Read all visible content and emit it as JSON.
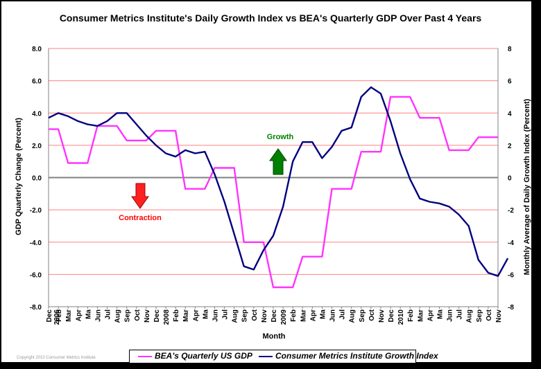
{
  "chart_data": {
    "type": "line",
    "title": "Consumer Metrics Institute's Daily Growth Index vs BEA's Quarterly GDP Over Past 4 Years",
    "xlabel": "Month",
    "ylabel": "GDP Quarterly Change (Percent)",
    "ylabel_right": "Monthly Average of Daily Growth Index (Percent)",
    "ylim": [
      -8,
      8
    ],
    "y_ticks_left": [
      "8.0",
      "6.0",
      "4.0",
      "2.0",
      "0.0",
      "-2.0",
      "-4.0",
      "-6.0",
      "-8.0"
    ],
    "y_ticks_right": [
      "8",
      "6",
      "4",
      "2",
      "0",
      "-2",
      "-4",
      "-6",
      "-8"
    ],
    "grid": true,
    "legend_position": "bottom",
    "x_labels": [
      [
        "Dec",
        "2006"
      ],
      [
        "Feb"
      ],
      [
        "Mar"
      ],
      [
        "Apr"
      ],
      [
        "Ma"
      ],
      [
        "Jun"
      ],
      [
        "Jul"
      ],
      [
        "Aug"
      ],
      [
        "Sep"
      ],
      [
        "Oct"
      ],
      [
        "Nov"
      ],
      [
        "Dec"
      ],
      [
        "2008"
      ],
      [
        "Feb"
      ],
      [
        "Mar"
      ],
      [
        "Apr"
      ],
      [
        "Ma"
      ],
      [
        "Jun"
      ],
      [
        "Jul"
      ],
      [
        "Aug"
      ],
      [
        "Sep"
      ],
      [
        "Oct"
      ],
      [
        "Nov"
      ],
      [
        "Dec"
      ],
      [
        "2009"
      ],
      [
        "Feb"
      ],
      [
        "Mar"
      ],
      [
        "Apr"
      ],
      [
        "Ma"
      ],
      [
        "Jun"
      ],
      [
        "Jul"
      ],
      [
        "Aug"
      ],
      [
        "Sep"
      ],
      [
        "Oct"
      ],
      [
        "Nov"
      ],
      [
        "Dec"
      ],
      [
        "2010"
      ],
      [
        "Feb"
      ],
      [
        "Mar"
      ],
      [
        "Apr"
      ],
      [
        "Ma"
      ],
      [
        "Jun"
      ],
      [
        "Jul"
      ],
      [
        "Aug"
      ],
      [
        "Sep"
      ],
      [
        "Oct"
      ],
      [
        "Nov"
      ]
    ],
    "series": [
      {
        "name": "BEA's Quarterly US GDP",
        "color": "#ff33ff",
        "axis": "left",
        "values": [
          3.0,
          3.0,
          0.9,
          0.9,
          0.9,
          3.2,
          3.2,
          3.2,
          2.3,
          2.3,
          2.3,
          2.9,
          2.9,
          2.9,
          -0.7,
          -0.7,
          -0.7,
          0.6,
          0.6,
          0.6,
          -4.0,
          -4.0,
          -4.0,
          -6.8,
          -6.8,
          -6.8,
          -4.9,
          -4.9,
          -4.9,
          -0.7,
          -0.7,
          -0.7,
          1.6,
          1.6,
          1.6,
          5.0,
          5.0,
          5.0,
          3.7,
          3.7,
          3.7,
          1.7,
          1.7,
          1.7,
          2.5,
          2.5,
          2.5
        ]
      },
      {
        "name": "Consumer Metrics Institute Growth Index",
        "color": "#000080",
        "axis": "right",
        "values": [
          3.7,
          4.0,
          3.8,
          3.5,
          3.3,
          3.2,
          3.5,
          4.0,
          4.0,
          3.3,
          2.6,
          2.0,
          1.5,
          1.3,
          1.7,
          1.5,
          1.6,
          0.2,
          -1.5,
          -3.5,
          -5.5,
          -5.7,
          -4.5,
          -3.6,
          -1.8,
          1.0,
          2.2,
          2.2,
          1.2,
          1.9,
          2.9,
          3.1,
          5.0,
          5.6,
          5.2,
          3.5,
          1.5,
          -0.1,
          -1.3,
          -1.5,
          -1.6,
          -1.8,
          -2.3,
          -3.0,
          -5.1,
          -5.9,
          -6.1
        ]
      }
    ],
    "extra_point": {
      "index": 47,
      "value": -5.0
    },
    "annotations": [
      {
        "text": "Growth",
        "color": "#008000"
      },
      {
        "text": "Contraction",
        "color": "#ff0000"
      }
    ]
  },
  "copyright": "Copyright 2010 Consumer Metrics Institute"
}
